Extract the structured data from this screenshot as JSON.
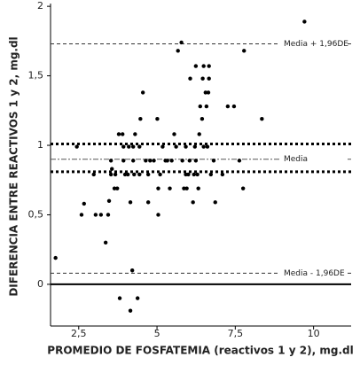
{
  "chart_data": {
    "type": "scatter",
    "xlabel": "PROMEDIO DE FOSFATEMIA (reactivos 1 y 2), mg.dl",
    "ylabel": "DIFERENCIA ENTRE REACTIVOS 1 y 2, mg.dl",
    "color": "#000000",
    "xlim": [
      1.6,
      11.2
    ],
    "ylim": [
      -0.3,
      2.02
    ],
    "xticks": [
      {
        "value": 2.5,
        "label": "2,5"
      },
      5,
      {
        "value": 7.5,
        "label": "7,5"
      },
      10
    ],
    "yticks": [
      0,
      {
        "value": 0.5,
        "label": "0,5"
      },
      1,
      {
        "value": 1.5,
        "label": "1,5"
      },
      2
    ],
    "reference_lines": [
      {
        "value": 1.73,
        "style": "dashed",
        "label": "Media + 1,96DE"
      },
      {
        "value": 1.01,
        "style": "dotted"
      },
      {
        "value": 0.9,
        "style": "dashdot",
        "label": "Media"
      },
      {
        "value": 0.81,
        "style": "dotted"
      },
      {
        "value": 0.08,
        "style": "dashed",
        "label": "Media - 1,96DE"
      },
      {
        "value": 0,
        "style": "solid"
      }
    ],
    "x": [
      1.76,
      2.44,
      2.59,
      2.67,
      2.98,
      3.04,
      3.21,
      3.36,
      3.44,
      3.47,
      3.53,
      3.53,
      3.56,
      3.64,
      3.67,
      3.73,
      3.78,
      3.9,
      3.81,
      3.93,
      3.93,
      3.98,
      4.07,
      4.1,
      4.15,
      4.15,
      4.21,
      4.24,
      4.24,
      4.27,
      4.3,
      4.38,
      4.44,
      4.44,
      4.47,
      4.55,
      4.64,
      4.72,
      4.72,
      4.78,
      4.9,
      5.01,
      5.04,
      5.04,
      5.1,
      5.18,
      5.27,
      5.33,
      5.41,
      5.47,
      5.55,
      5.61,
      5.67,
      5.78,
      5.81,
      5.86,
      5.92,
      5.92,
      5.95,
      6.0,
      6.04,
      6.06,
      6.15,
      6.18,
      6.21,
      6.24,
      6.24,
      6.29,
      6.32,
      6.35,
      6.38,
      6.44,
      6.46,
      6.49,
      6.49,
      6.55,
      6.58,
      6.61,
      6.64,
      6.66,
      6.66,
      6.72,
      6.81,
      6.86,
      7.09,
      7.26,
      7.46,
      7.63,
      7.75,
      7.78,
      8.35,
      9.71
    ],
    "values": [
      0.19,
      0.99,
      0.5,
      0.58,
      0.79,
      0.5,
      0.5,
      0.3,
      0.5,
      0.6,
      0.89,
      0.79,
      0.83,
      0.69,
      0.79,
      0.69,
      1.08,
      1.08,
      -0.1,
      0.99,
      0.89,
      0.79,
      0.79,
      0.99,
      0.59,
      -0.19,
      0.1,
      0.99,
      0.89,
      0.79,
      1.08,
      -0.1,
      0.99,
      0.79,
      1.19,
      1.38,
      0.89,
      0.59,
      0.79,
      0.89,
      0.89,
      1.19,
      0.69,
      0.5,
      0.79,
      0.99,
      0.89,
      0.89,
      0.69,
      0.89,
      1.08,
      0.99,
      1.68,
      1.74,
      0.89,
      0.69,
      0.79,
      0.99,
      0.69,
      0.79,
      0.89,
      1.48,
      0.59,
      0.79,
      0.99,
      1.57,
      0.89,
      0.79,
      0.69,
      1.08,
      1.28,
      1.19,
      1.48,
      0.99,
      1.57,
      1.38,
      1.28,
      0.99,
      1.38,
      1.57,
      1.48,
      0.79,
      0.89,
      0.59,
      0.79,
      1.28,
      1.28,
      0.89,
      0.69,
      1.68,
      1.19,
      1.89
    ]
  }
}
